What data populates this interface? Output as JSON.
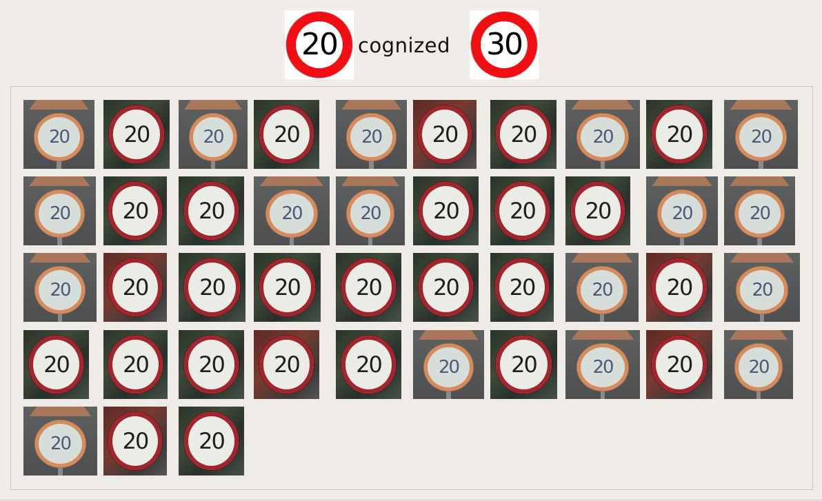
{
  "header": {
    "left_sign_number": "20",
    "title_text": "cognized",
    "right_sign_number": "30"
  },
  "grid": {
    "tile_number": "20",
    "tiles": [
      {
        "style": "pale"
      },
      {
        "style": "dark"
      },
      {
        "style": "pale"
      },
      {
        "style": "dark"
      },
      {
        "style": "pale"
      },
      {
        "style": "brick"
      },
      {
        "style": "dark"
      },
      {
        "style": "pale"
      },
      {
        "style": "dark"
      },
      {
        "style": "pale"
      },
      {
        "style": "pale"
      },
      {
        "style": "dark"
      },
      {
        "style": "dark"
      },
      {
        "style": "pale"
      },
      {
        "style": "pale"
      },
      {
        "style": "dark"
      },
      {
        "style": "dark"
      },
      {
        "style": "dark"
      },
      {
        "style": "pale"
      },
      {
        "style": "pale"
      },
      {
        "style": "pale"
      },
      {
        "style": "brick"
      },
      {
        "style": "dark"
      },
      {
        "style": "dark"
      },
      {
        "style": "dark"
      },
      {
        "style": "dark"
      },
      {
        "style": "dark"
      },
      {
        "style": "pale"
      },
      {
        "style": "brick"
      },
      {
        "style": "pale"
      },
      {
        "style": "dark"
      },
      {
        "style": "dark"
      },
      {
        "style": "dark"
      },
      {
        "style": "brick"
      },
      {
        "style": "dark"
      },
      {
        "style": "pale"
      },
      {
        "style": "dark"
      },
      {
        "style": "pale"
      },
      {
        "style": "brick"
      },
      {
        "style": "pale"
      },
      {
        "style": "pale"
      },
      {
        "style": "brick"
      },
      {
        "style": "dark"
      }
    ]
  },
  "colors": {
    "background": "#efece8",
    "sign_red": "#f00e12",
    "panel_border": "#c8c4be"
  }
}
